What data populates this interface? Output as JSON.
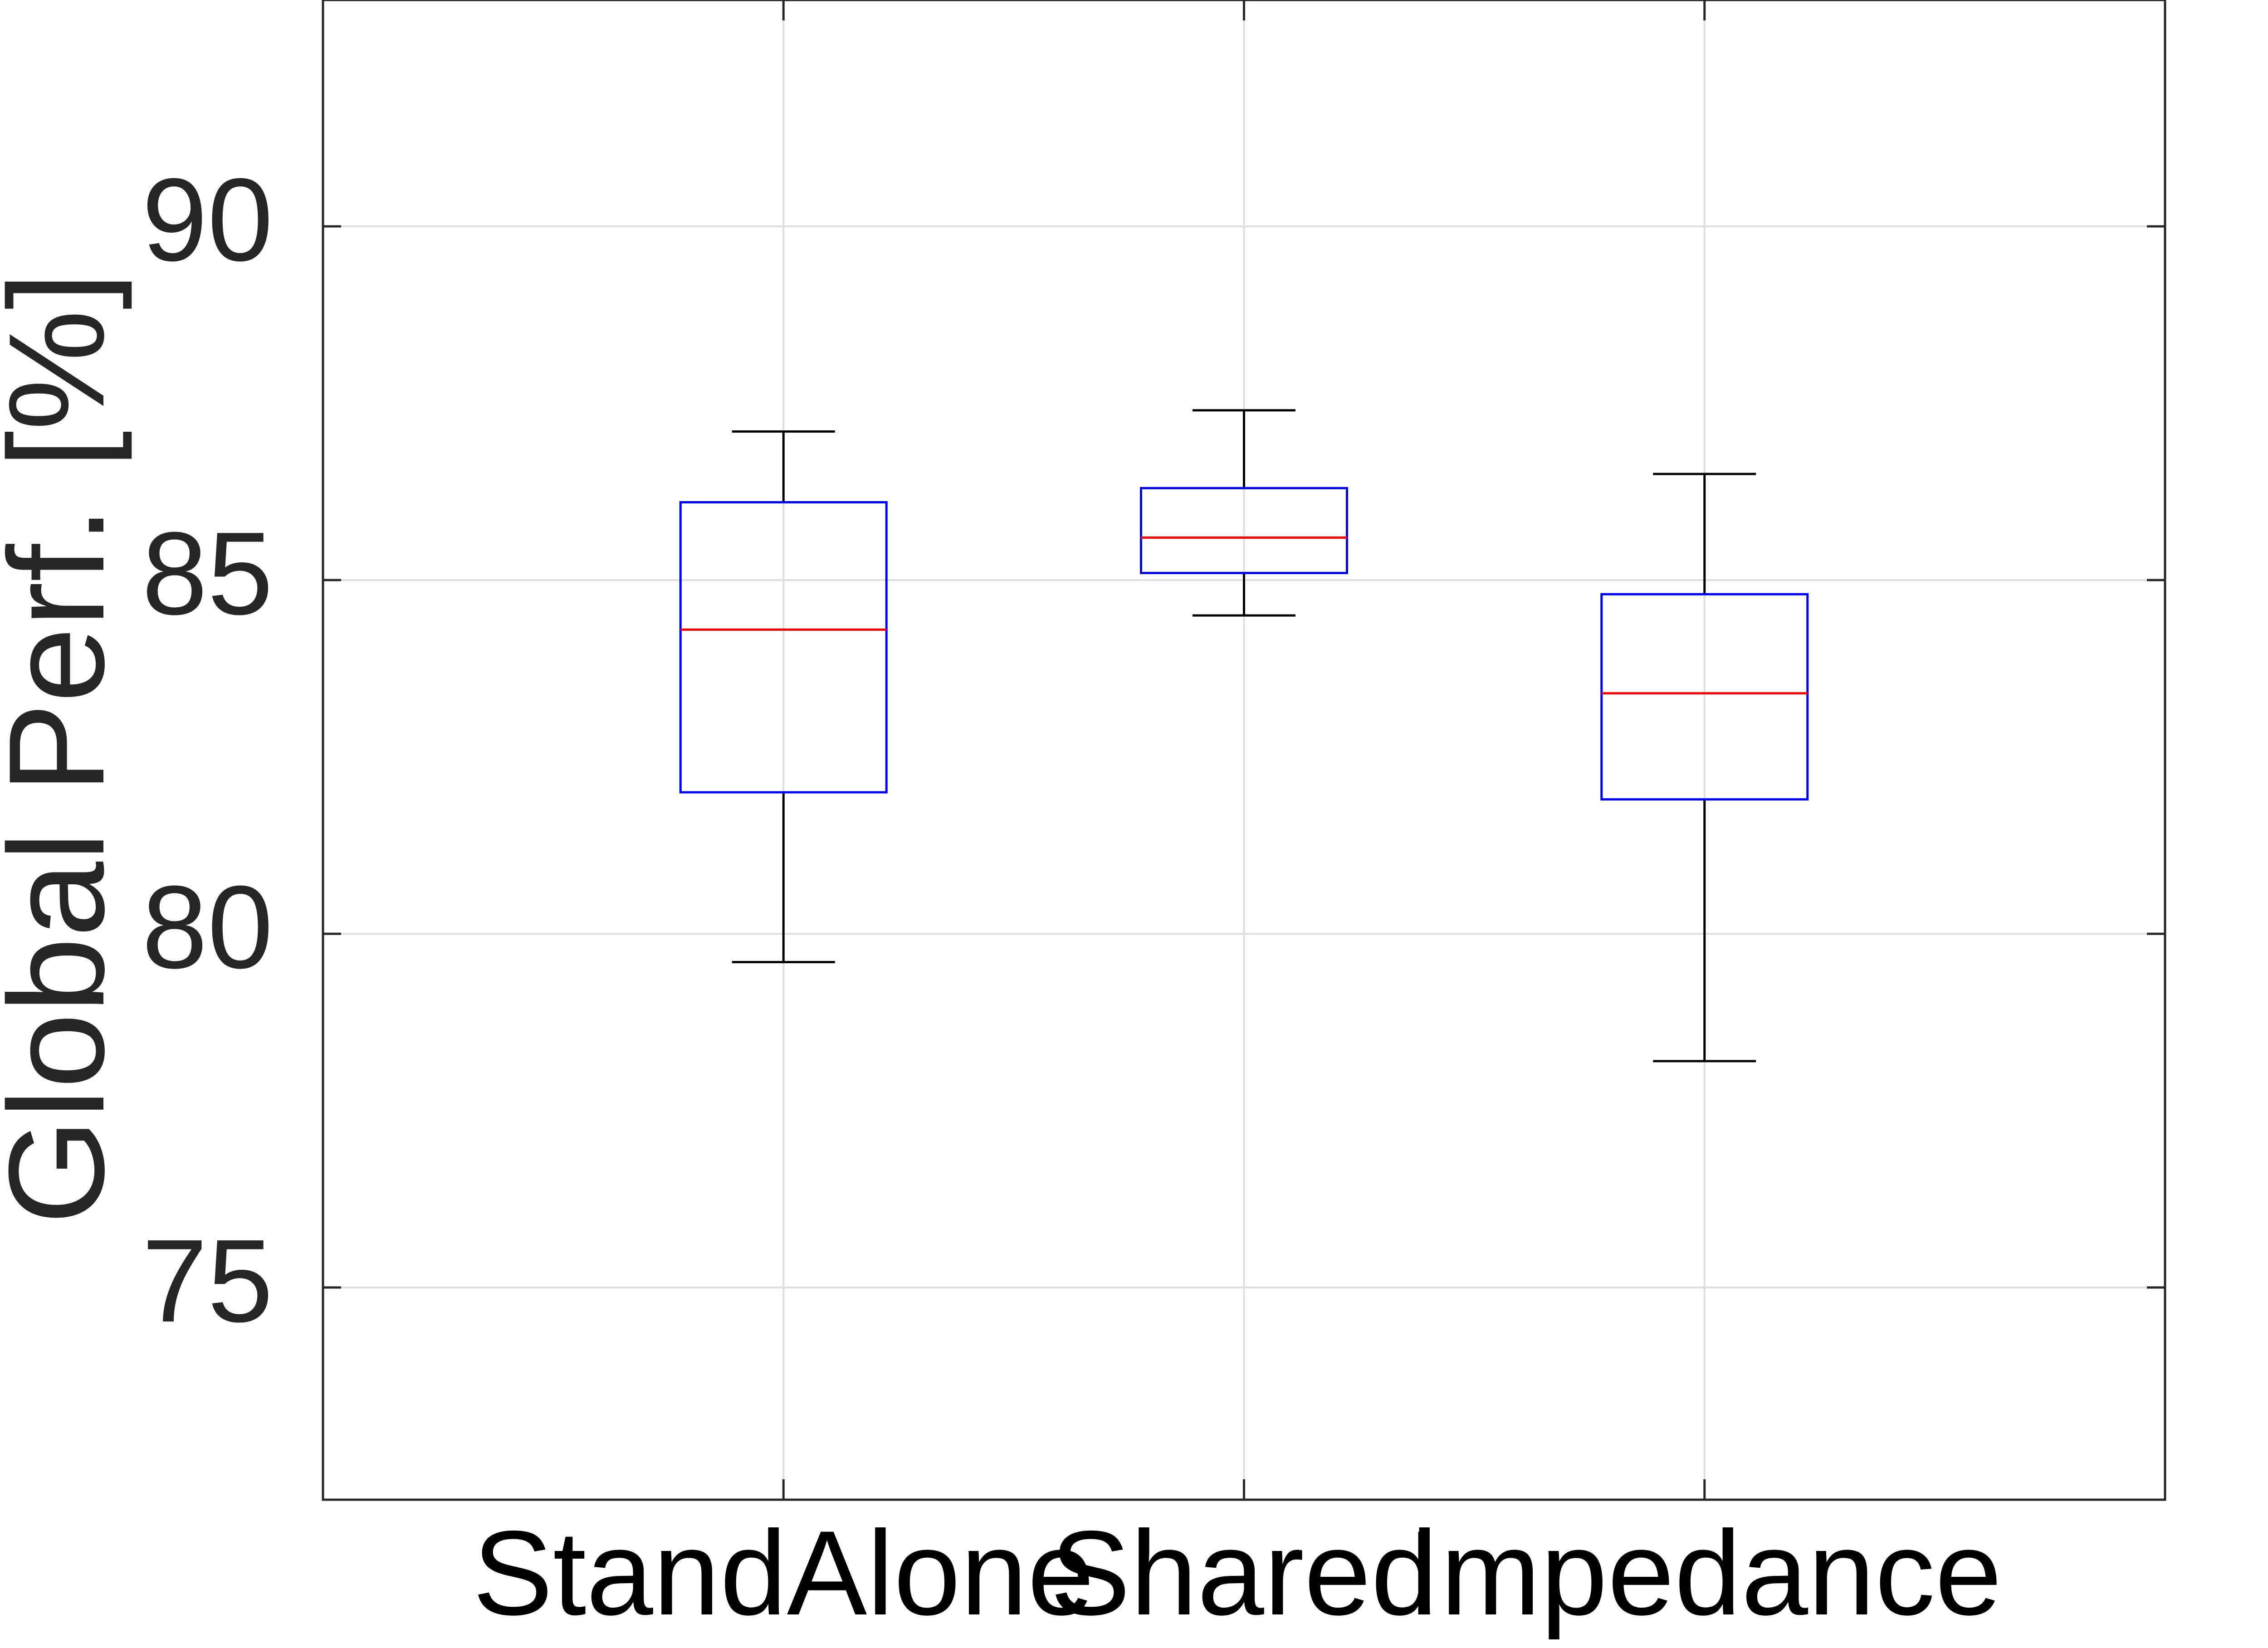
{
  "chart_data": {
    "type": "box",
    "ylabel": "Global Perf. [%]",
    "xlabel": "",
    "title": "",
    "ylim": [
      72,
      93.2
    ],
    "yticks": [
      75,
      80,
      85,
      90
    ],
    "ytick_labels": [
      "75",
      "80",
      "85",
      "90"
    ],
    "grid": true,
    "categories": [
      "StandAlone",
      "Shared",
      "Impedance"
    ],
    "boxes": [
      {
        "category": "StandAlone",
        "whisker_low": 79.6,
        "q1": 82.0,
        "median": 84.3,
        "q3": 86.1,
        "whisker_high": 87.1
      },
      {
        "category": "Shared",
        "whisker_low": 84.5,
        "q1": 85.1,
        "median": 85.6,
        "q3": 86.3,
        "whisker_high": 87.4
      },
      {
        "category": "Impedance",
        "whisker_low": 78.2,
        "q1": 81.9,
        "median": 83.4,
        "q3": 84.8,
        "whisker_high": 86.5
      }
    ],
    "colors": {
      "box": "#0000ff",
      "median": "#ff0000",
      "whisker": "#000000",
      "grid": "#dedede",
      "axis": "#262626"
    }
  }
}
